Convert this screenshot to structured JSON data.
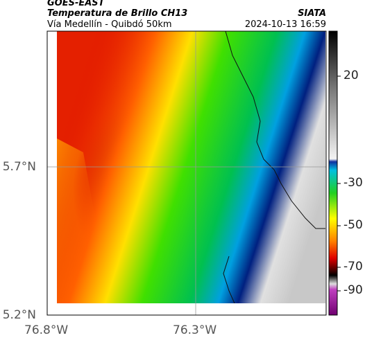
{
  "header": {
    "source": "GOES-EAST",
    "product": "Temperatura de Brillo CH13",
    "org": "SIATA",
    "route": "Vía Medellín - Quibdó 50km",
    "timestamp": "2024-10-13 16:59"
  },
  "map": {
    "lat_labels": [
      "5.7°N",
      "5.2°N"
    ],
    "lon_labels": [
      "76.8°W",
      "76.3°W"
    ]
  },
  "colorbar": {
    "ticks": [
      "20",
      "-30",
      "-50",
      "-70",
      "-90"
    ]
  }
}
